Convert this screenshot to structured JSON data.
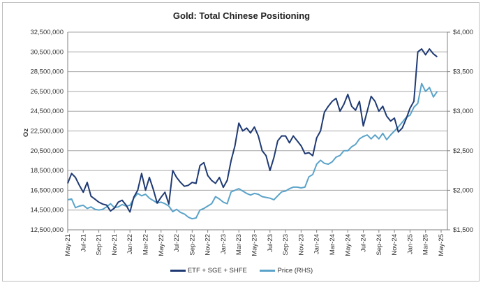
{
  "chart_data": {
    "type": "line",
    "title": "Gold: Total Chinese Positioning",
    "ylabel": "Oz",
    "ylim": [
      12500000,
      32500000
    ],
    "y_ticks": [
      "12,500,000",
      "14,500,000",
      "16,500,000",
      "18,500,000",
      "20,500,000",
      "22,500,000",
      "24,500,000",
      "26,500,000",
      "28,500,000",
      "30,500,000",
      "32,500,000"
    ],
    "y2lim": [
      1500,
      4000
    ],
    "y2_ticks": [
      "$1,500",
      "$2,000",
      "$2,500",
      "$3,000",
      "$3,500",
      "$4,000"
    ],
    "x_ticks": [
      "May-21",
      "Jul-21",
      "Sep-21",
      "Nov-21",
      "Jan-22",
      "Mar-22",
      "May-22",
      "Jul-22",
      "Sep-22",
      "Nov-22",
      "Jan-23",
      "Mar-23",
      "May-23",
      "Jul-23",
      "Sep-23",
      "Nov-23",
      "Jan-24",
      "Mar-24",
      "May-24",
      "Jul-24",
      "Sep-24",
      "Nov-24",
      "Jan-25",
      "Mar-25",
      "May-25"
    ],
    "x_unit": "months since May-21",
    "grid": true,
    "legend_position": "bottom",
    "series": [
      {
        "name": "ETF + SGE + SHFE",
        "axis": "left",
        "color": "#1f3a73",
        "x": [
          0,
          0.5,
          1,
          1.5,
          2,
          2.5,
          3,
          3.5,
          4,
          4.5,
          5,
          5.5,
          6,
          6.5,
          7,
          7.5,
          8,
          8.5,
          9,
          9.5,
          10,
          10.5,
          11,
          11.5,
          12,
          12.5,
          13,
          13.5,
          14,
          14.5,
          15,
          15.5,
          16,
          16.5,
          17,
          17.5,
          18,
          18.5,
          19,
          19.5,
          20,
          20.5,
          21,
          21.5,
          22,
          22.5,
          23,
          23.5,
          24,
          24.5,
          25,
          25.5,
          26,
          26.5,
          27,
          27.5,
          28,
          28.5,
          29,
          29.5,
          30,
          30.5,
          31,
          31.5,
          32,
          32.5,
          33,
          33.5,
          34,
          34.5,
          35,
          35.5,
          36,
          36.5,
          37,
          37.5,
          38,
          38.5,
          39,
          39.5,
          40,
          40.5,
          41,
          41.5,
          42,
          42.5,
          43,
          43.5,
          44,
          44.5,
          45,
          45.5,
          46,
          46.5,
          47,
          47.5
        ],
        "values": [
          17200000,
          18200000,
          17800000,
          17000000,
          16300000,
          17300000,
          15900000,
          15600000,
          15300000,
          15100000,
          15000000,
          14400000,
          14700000,
          15300000,
          15500000,
          15000000,
          14300000,
          15800000,
          16500000,
          18200000,
          16500000,
          17800000,
          16600000,
          15200000,
          15800000,
          16300000,
          15100000,
          18500000,
          17800000,
          17300000,
          16900000,
          17000000,
          17300000,
          17200000,
          19000000,
          19300000,
          18000000,
          17500000,
          17200000,
          17800000,
          16800000,
          17500000,
          19500000,
          21000000,
          23300000,
          22500000,
          22800000,
          22300000,
          22900000,
          22000000,
          20500000,
          20000000,
          18500000,
          19800000,
          21500000,
          22000000,
          22000000,
          21300000,
          22000000,
          21500000,
          21000000,
          20200000,
          20300000,
          20000000,
          21800000,
          22500000,
          24400000,
          25000000,
          25500000,
          25800000,
          24500000,
          25200000,
          26200000,
          25000000,
          24600000,
          25500000,
          23000000,
          24500000,
          26000000,
          25500000,
          24500000,
          25000000,
          24000000,
          23500000,
          23800000,
          22400000,
          22800000,
          23700000,
          24800000,
          25500000,
          30500000,
          30800000,
          30200000,
          30800000,
          30300000,
          30000000
        ]
      },
      {
        "name": "Price (RHS)",
        "axis": "right",
        "color": "#5ba3c9",
        "x": [
          0,
          0.5,
          1,
          1.5,
          2,
          2.5,
          3,
          3.5,
          4,
          4.5,
          5,
          5.5,
          6,
          6.5,
          7,
          7.5,
          8,
          8.5,
          9,
          9.5,
          10,
          10.5,
          11,
          11.5,
          12,
          12.5,
          13,
          13.5,
          14,
          14.5,
          15,
          15.5,
          16,
          16.5,
          17,
          17.5,
          18,
          18.5,
          19,
          19.5,
          20,
          20.5,
          21,
          21.5,
          22,
          22.5,
          23,
          23.5,
          24,
          24.5,
          25,
          25.5,
          26,
          26.5,
          27,
          27.5,
          28,
          28.5,
          29,
          29.5,
          30,
          30.5,
          31,
          31.5,
          32,
          32.5,
          33,
          33.5,
          34,
          34.5,
          35,
          35.5,
          36,
          36.5,
          37,
          37.5,
          38,
          38.5,
          39,
          39.5,
          40,
          40.5,
          41,
          41.5,
          42,
          42.5,
          43,
          43.5,
          44,
          44.5,
          45,
          45.5,
          46,
          46.5,
          47,
          47.5
        ],
        "values": [
          1880,
          1890,
          1780,
          1800,
          1810,
          1770,
          1790,
          1760,
          1750,
          1760,
          1790,
          1830,
          1780,
          1790,
          1820,
          1800,
          1810,
          1900,
          1960,
          1930,
          1950,
          1900,
          1870,
          1840,
          1850,
          1830,
          1800,
          1730,
          1760,
          1720,
          1700,
          1660,
          1640,
          1650,
          1750,
          1770,
          1800,
          1830,
          1920,
          1890,
          1850,
          1830,
          1980,
          2000,
          2020,
          1990,
          1960,
          1940,
          1960,
          1950,
          1920,
          1910,
          1900,
          1880,
          1930,
          1980,
          1990,
          2020,
          2040,
          2040,
          2030,
          2040,
          2170,
          2200,
          2330,
          2380,
          2340,
          2330,
          2360,
          2420,
          2440,
          2500,
          2500,
          2550,
          2580,
          2650,
          2680,
          2700,
          2650,
          2700,
          2650,
          2720,
          2640,
          2700,
          2750,
          2800,
          2860,
          2920,
          2950,
          3050,
          3100,
          3350,
          3250,
          3300,
          3180,
          3250
        ]
      }
    ]
  }
}
